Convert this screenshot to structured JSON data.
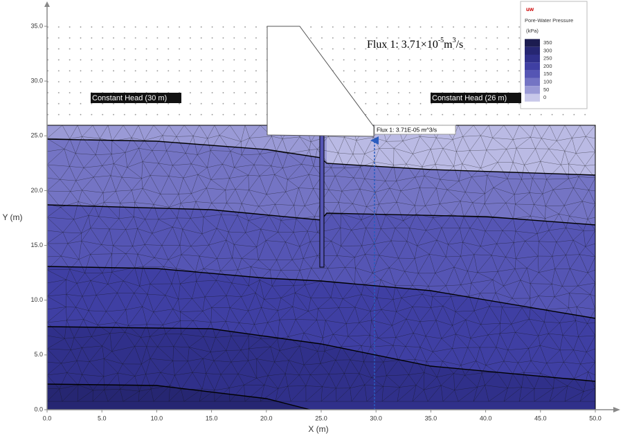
{
  "chart_data": {
    "type": "contour",
    "xlabel": "X (m)",
    "ylabel": "Y (m)",
    "xlim": [
      0,
      50
    ],
    "ylim": [
      0,
      35
    ],
    "xticks": [
      {
        "value": 0,
        "label": "0.0"
      },
      {
        "value": 5,
        "label": "5.0"
      },
      {
        "value": 10,
        "label": "10.0"
      },
      {
        "value": 15,
        "label": "15.0"
      },
      {
        "value": 20,
        "label": "20.0"
      },
      {
        "value": 25,
        "label": "25.0"
      },
      {
        "value": 30,
        "label": "30.0"
      },
      {
        "value": 35,
        "label": "35.0"
      },
      {
        "value": 40,
        "label": "40.0"
      },
      {
        "value": 45,
        "label": "45.0"
      },
      {
        "value": 50,
        "label": "50.0"
      }
    ],
    "yticks": [
      {
        "value": 0,
        "label": "0.0"
      },
      {
        "value": 5,
        "label": "5.0"
      },
      {
        "value": 10,
        "label": "10.0"
      },
      {
        "value": 15,
        "label": "15.0"
      },
      {
        "value": 20,
        "label": "20.0"
      },
      {
        "value": 25,
        "label": "25.0"
      },
      {
        "value": 30,
        "label": "30.0"
      },
      {
        "value": 35,
        "label": "35.0"
      }
    ],
    "annotations": [
      "Constant Head (30 m)",
      "Constant Head (26 m)",
      "Flux 1: 3.71E-05 m^3/s"
    ],
    "flux_note": [
      "Flux 1: 3.71×10",
      "-5",
      "m",
      "3",
      "/s"
    ],
    "legend": {
      "title": "uw",
      "subtitle": "Pore-Water Pressure",
      "unit": "(kPa)",
      "levels": [
        350,
        300,
        250,
        200,
        150,
        100,
        50,
        0
      ],
      "colors": [
        "#1c1c50",
        "#262672",
        "#30308a",
        "#3f3fa3",
        "#5555b4",
        "#7474c4",
        "#9a9ad6",
        "#c8c8ea"
      ]
    }
  }
}
